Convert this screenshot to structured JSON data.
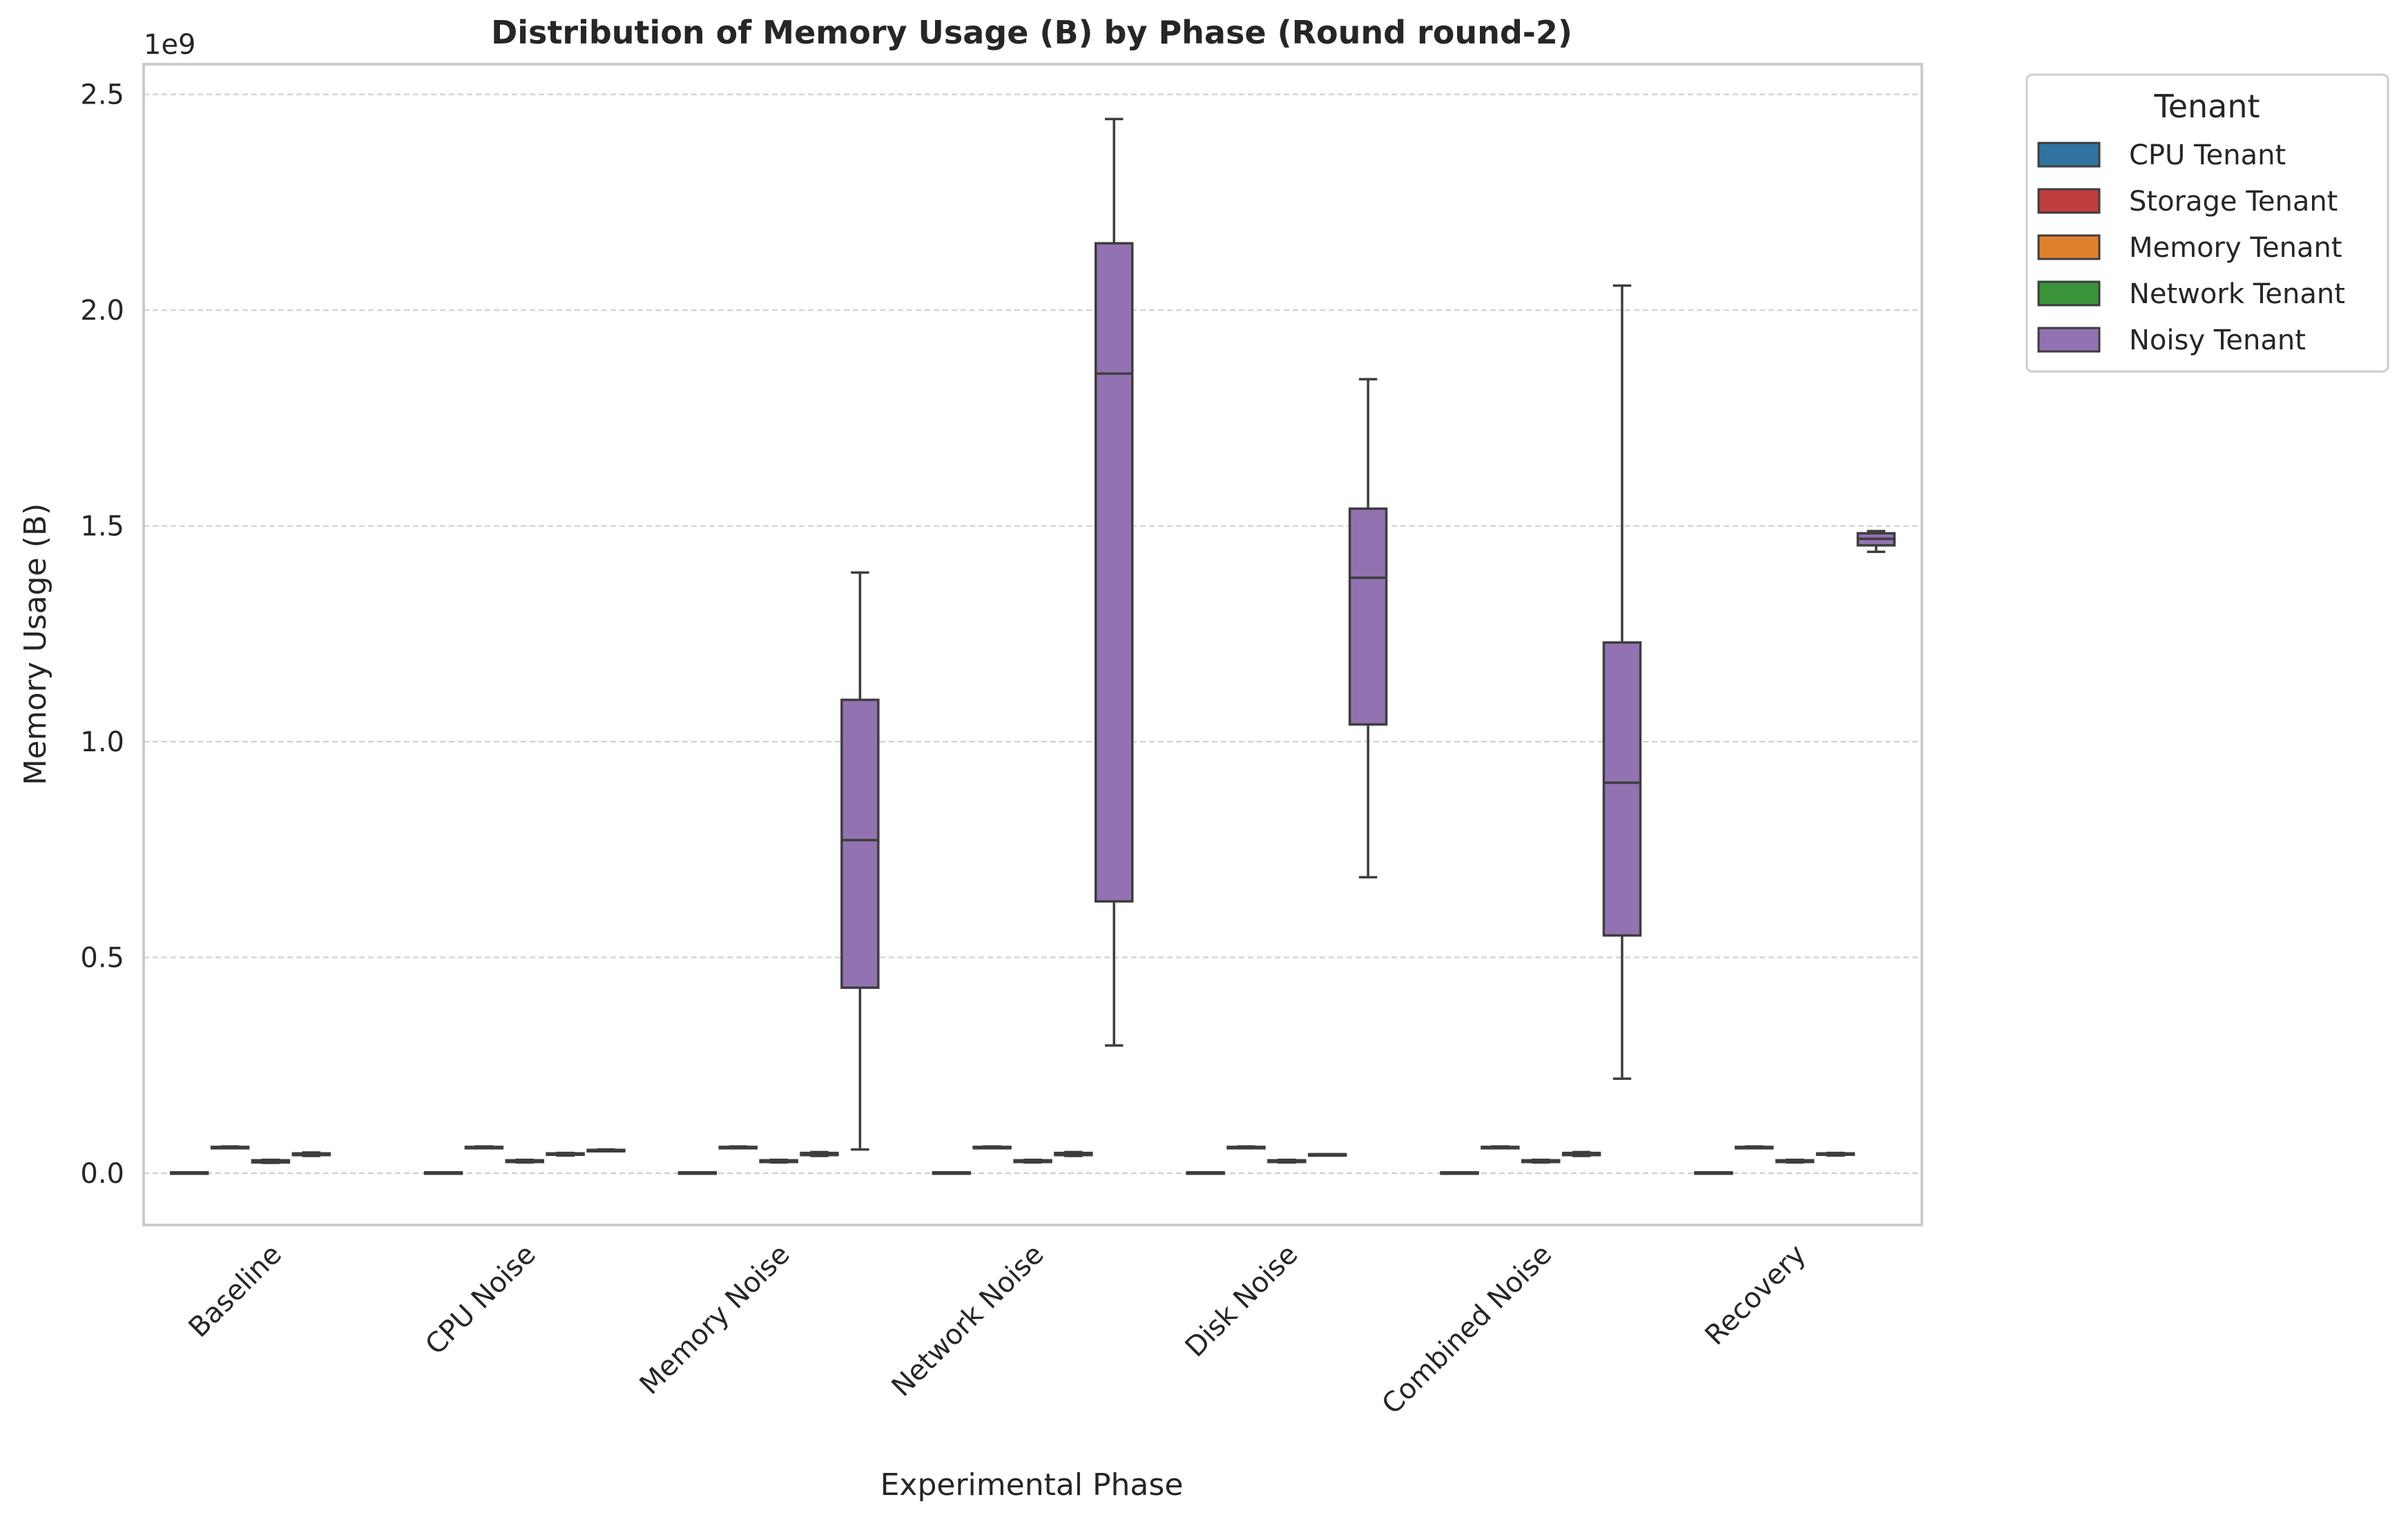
{
  "chart_data": {
    "type": "boxplot",
    "title": "Distribution of Memory Usage (B) by Phase (Round round-2)",
    "xlabel": "Experimental Phase",
    "ylabel": "Memory Usage (B)",
    "y_offset_label": "1e9",
    "ylim": [
      -0.12,
      2.57
    ],
    "y_unit": "1e9 B",
    "y_ticks": [
      0.0,
      0.5,
      1.0,
      1.5,
      2.0,
      2.5
    ],
    "y_tick_labels": [
      "0.0",
      "0.5",
      "1.0",
      "1.5",
      "2.0",
      "2.5"
    ],
    "grid": "horizontal dashed",
    "legend_placement": "outside top-right",
    "categories": [
      "Baseline",
      "CPU Noise",
      "Memory Noise",
      "Network Noise",
      "Disk Noise",
      "Combined Noise",
      "Recovery"
    ],
    "legend": {
      "title": "Tenant",
      "entries": [
        {
          "name": "CPU Tenant",
          "color": "#3274a1"
        },
        {
          "name": "Storage Tenant",
          "color": "#c03d3e"
        },
        {
          "name": "Memory Tenant",
          "color": "#e1812c"
        },
        {
          "name": "Network Tenant",
          "color": "#3a923a"
        },
        {
          "name": "Noisy Tenant",
          "color": "#9372b2"
        }
      ]
    },
    "series": [
      {
        "name": "CPU Tenant",
        "boxes": [
          {
            "min": 0.002,
            "q1": 0.002,
            "median": 0.002,
            "q3": 0.002,
            "max": 0.002
          },
          {
            "min": 0.002,
            "q1": 0.002,
            "median": 0.002,
            "q3": 0.002,
            "max": 0.002
          },
          {
            "min": 0.002,
            "q1": 0.002,
            "median": 0.002,
            "q3": 0.002,
            "max": 0.002
          },
          {
            "min": 0.002,
            "q1": 0.002,
            "median": 0.002,
            "q3": 0.002,
            "max": 0.002
          },
          {
            "min": 0.002,
            "q1": 0.002,
            "median": 0.002,
            "q3": 0.002,
            "max": 0.002
          },
          {
            "min": 0.002,
            "q1": 0.002,
            "median": 0.002,
            "q3": 0.002,
            "max": 0.002
          },
          {
            "min": 0.002,
            "q1": 0.002,
            "median": 0.002,
            "q3": 0.002,
            "max": 0.002
          }
        ]
      },
      {
        "name": "Storage Tenant",
        "boxes": [
          {
            "min": 0.058,
            "q1": 0.059,
            "median": 0.06,
            "q3": 0.061,
            "max": 0.062
          },
          {
            "min": 0.058,
            "q1": 0.059,
            "median": 0.06,
            "q3": 0.061,
            "max": 0.062
          },
          {
            "min": 0.058,
            "q1": 0.059,
            "median": 0.06,
            "q3": 0.061,
            "max": 0.062
          },
          {
            "min": 0.058,
            "q1": 0.059,
            "median": 0.06,
            "q3": 0.061,
            "max": 0.062
          },
          {
            "min": 0.058,
            "q1": 0.059,
            "median": 0.06,
            "q3": 0.061,
            "max": 0.062
          },
          {
            "min": 0.058,
            "q1": 0.059,
            "median": 0.06,
            "q3": 0.061,
            "max": 0.062
          },
          {
            "min": 0.058,
            "q1": 0.059,
            "median": 0.06,
            "q3": 0.061,
            "max": 0.062
          }
        ]
      },
      {
        "name": "Memory Tenant",
        "boxes": [
          {
            "min": 0.024,
            "q1": 0.025,
            "median": 0.027,
            "q3": 0.03,
            "max": 0.031
          },
          {
            "min": 0.025,
            "q1": 0.026,
            "median": 0.028,
            "q3": 0.03,
            "max": 0.031
          },
          {
            "min": 0.025,
            "q1": 0.026,
            "median": 0.028,
            "q3": 0.03,
            "max": 0.031
          },
          {
            "min": 0.025,
            "q1": 0.026,
            "median": 0.028,
            "q3": 0.03,
            "max": 0.031
          },
          {
            "min": 0.025,
            "q1": 0.026,
            "median": 0.028,
            "q3": 0.03,
            "max": 0.031
          },
          {
            "min": 0.025,
            "q1": 0.026,
            "median": 0.028,
            "q3": 0.03,
            "max": 0.031
          },
          {
            "min": 0.025,
            "q1": 0.026,
            "median": 0.028,
            "q3": 0.03,
            "max": 0.031
          }
        ]
      },
      {
        "name": "Network Tenant",
        "boxes": [
          {
            "min": 0.04,
            "q1": 0.042,
            "median": 0.044,
            "q3": 0.046,
            "max": 0.048
          },
          {
            "min": 0.041,
            "q1": 0.043,
            "median": 0.044,
            "q3": 0.046,
            "max": 0.047
          },
          {
            "min": 0.04,
            "q1": 0.042,
            "median": 0.045,
            "q3": 0.047,
            "max": 0.049
          },
          {
            "min": 0.04,
            "q1": 0.042,
            "median": 0.045,
            "q3": 0.047,
            "max": 0.049
          },
          {
            "min": 0.043,
            "q1": 0.043,
            "median": 0.044,
            "q3": 0.044,
            "max": 0.044
          },
          {
            "min": 0.04,
            "q1": 0.042,
            "median": 0.045,
            "q3": 0.047,
            "max": 0.049
          },
          {
            "min": 0.041,
            "q1": 0.043,
            "median": 0.045,
            "q3": 0.046,
            "max": 0.047
          }
        ]
      },
      {
        "name": "Noisy Tenant",
        "boxes": [
          null,
          {
            "min": 0.053,
            "q1": 0.053,
            "median": 0.054,
            "q3": 0.054,
            "max": 0.055
          },
          {
            "min": 0.055,
            "q1": 0.43,
            "median": 0.772,
            "q3": 1.097,
            "max": 1.392
          },
          {
            "min": 0.296,
            "q1": 0.63,
            "median": 1.853,
            "q3": 2.155,
            "max": 2.443
          },
          {
            "min": 0.686,
            "q1": 1.04,
            "median": 1.38,
            "q3": 1.54,
            "max": 1.84
          },
          {
            "min": 0.219,
            "q1": 0.551,
            "median": 0.905,
            "q3": 1.23,
            "max": 2.057
          },
          {
            "min": 1.44,
            "q1": 1.455,
            "median": 1.47,
            "q3": 1.483,
            "max": 1.488
          }
        ]
      }
    ]
  }
}
